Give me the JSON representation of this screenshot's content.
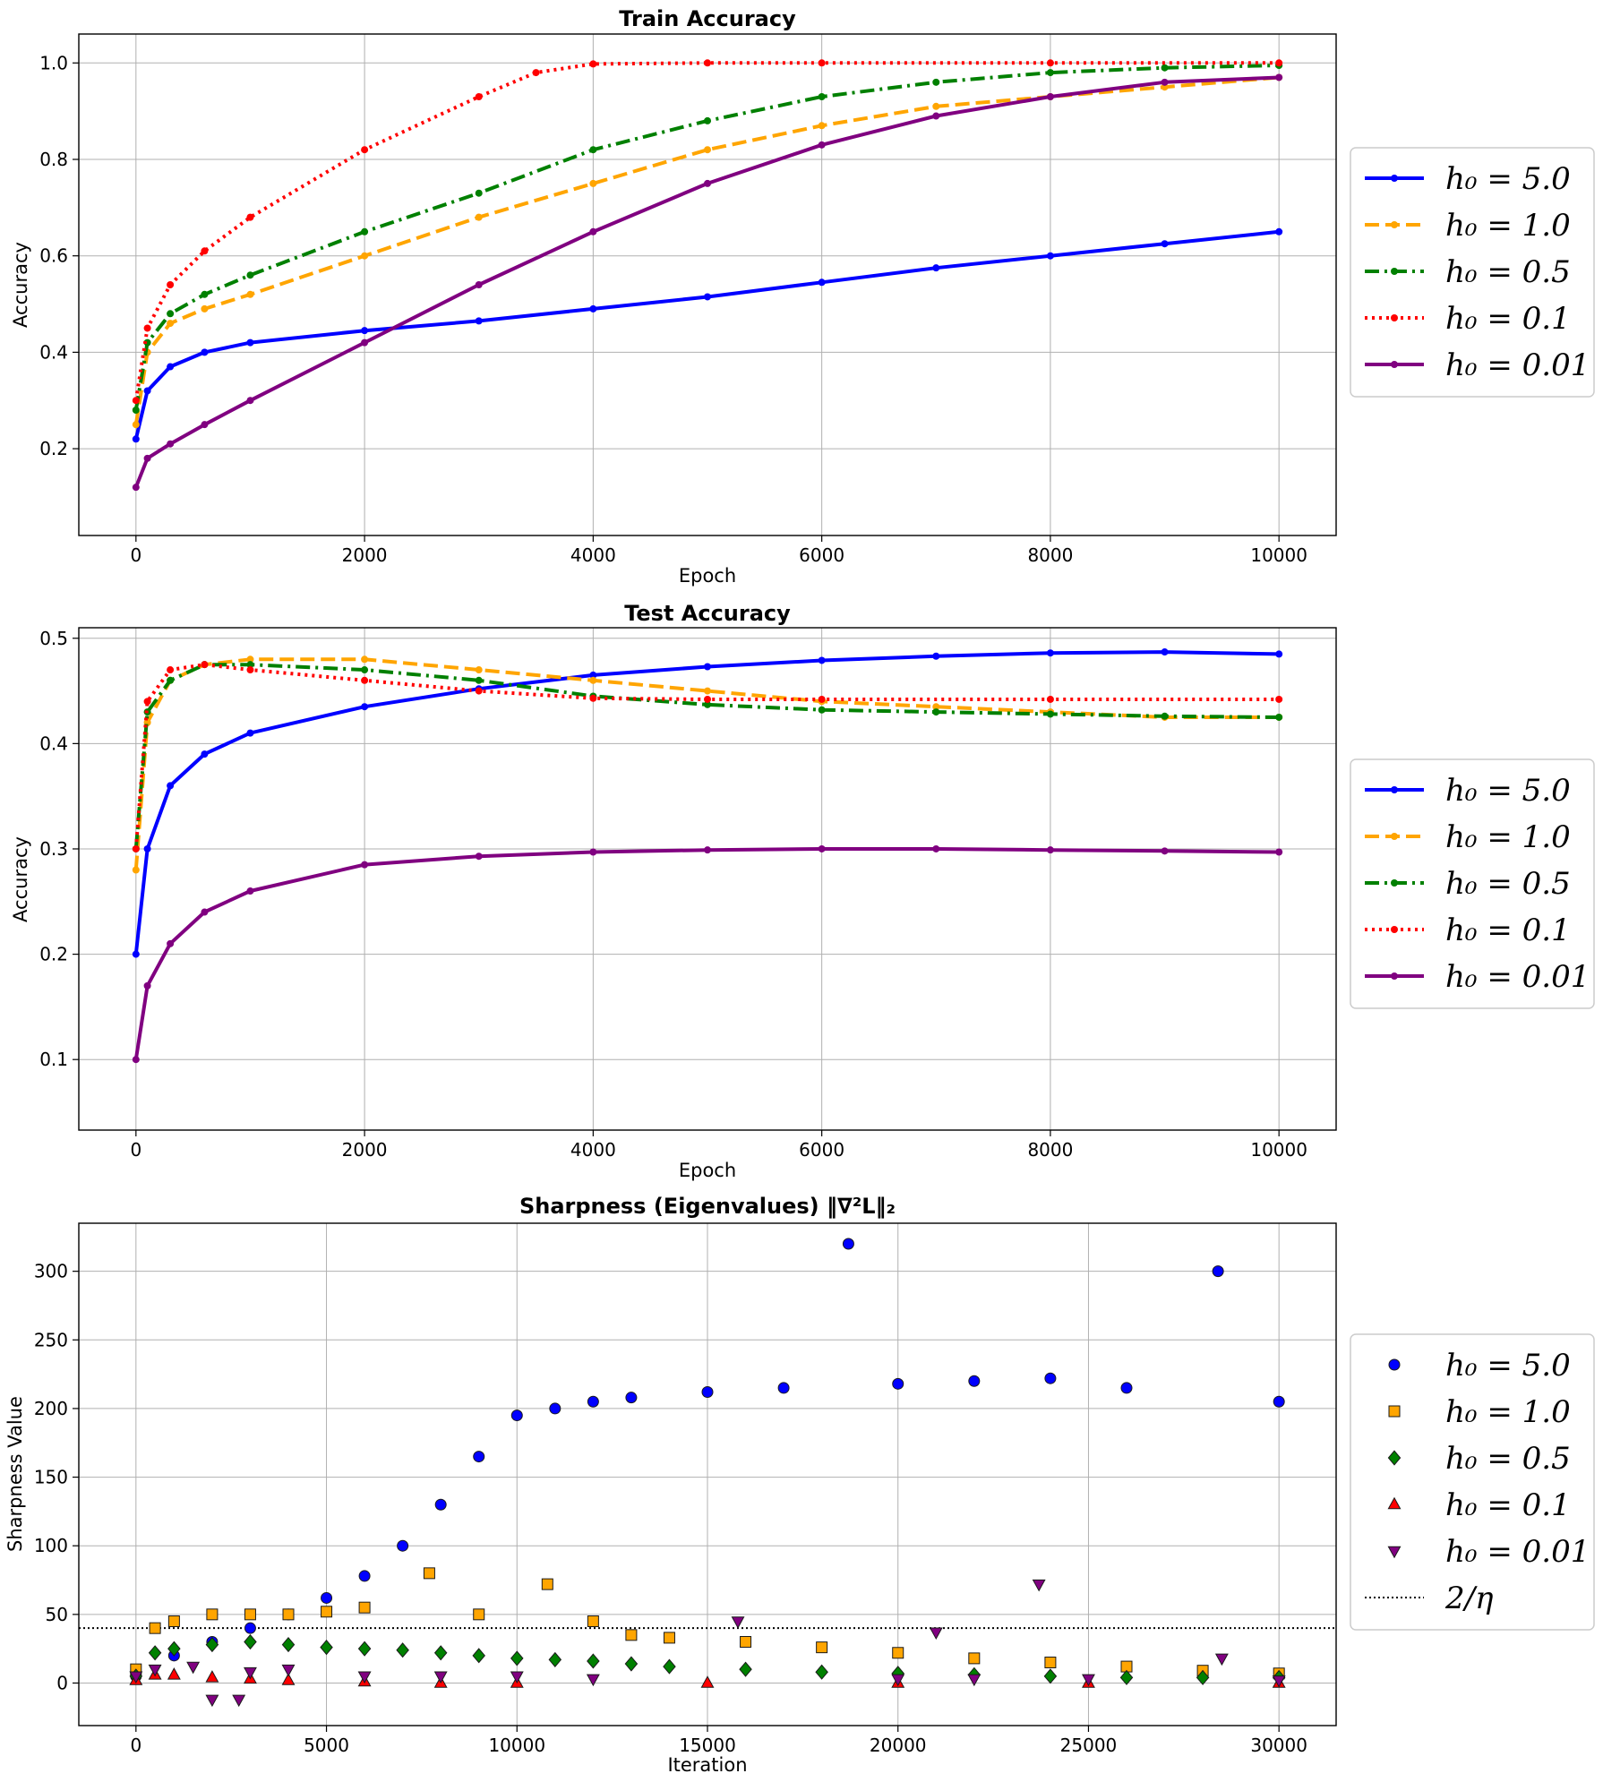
{
  "colors": {
    "h5": "#0000ff",
    "h1": "#ffa500",
    "h05": "#008000",
    "h01": "#ff0000",
    "h001": "#800080",
    "threshold": "#000000"
  },
  "chart_data": [
    {
      "type": "line",
      "title": "Train Accuracy",
      "xlabel": "Epoch",
      "ylabel": "Accuracy",
      "xlim": [
        -500,
        10500
      ],
      "ylim": [
        0.02,
        1.06
      ],
      "xticks": [
        0,
        2000,
        4000,
        6000,
        8000,
        10000
      ],
      "xtick_labels": [
        "0",
        "2000",
        "4000",
        "6000",
        "8000",
        "10000"
      ],
      "yticks": [
        0.2,
        0.4,
        0.6,
        0.8,
        1.0
      ],
      "ytick_labels": [
        "0.2",
        "0.4",
        "0.6",
        "0.8",
        "1.0"
      ],
      "grid": true,
      "legend": "outside-right",
      "series": [
        {
          "name": "h₀ = 5.0",
          "x": [
            0,
            100,
            300,
            600,
            1000,
            2000,
            3000,
            4000,
            5000,
            6000,
            7000,
            8000,
            9000,
            10000
          ],
          "values": [
            0.22,
            0.32,
            0.37,
            0.4,
            0.42,
            0.445,
            0.465,
            0.49,
            0.515,
            0.545,
            0.575,
            0.6,
            0.625,
            0.65
          ]
        },
        {
          "name": "h₀ = 1.0",
          "x": [
            0,
            100,
            300,
            600,
            1000,
            2000,
            3000,
            4000,
            5000,
            6000,
            7000,
            8000,
            9000,
            10000
          ],
          "values": [
            0.25,
            0.4,
            0.46,
            0.49,
            0.52,
            0.6,
            0.68,
            0.75,
            0.82,
            0.87,
            0.91,
            0.93,
            0.95,
            0.97
          ]
        },
        {
          "name": "h₀ = 0.5",
          "x": [
            0,
            100,
            300,
            600,
            1000,
            2000,
            3000,
            4000,
            5000,
            6000,
            7000,
            8000,
            9000,
            10000
          ],
          "values": [
            0.28,
            0.42,
            0.48,
            0.52,
            0.56,
            0.65,
            0.73,
            0.82,
            0.88,
            0.93,
            0.96,
            0.98,
            0.99,
            0.995
          ]
        },
        {
          "name": "h₀ = 0.1",
          "x": [
            0,
            100,
            300,
            600,
            1000,
            2000,
            3000,
            3500,
            4000,
            5000,
            6000,
            8000,
            10000
          ],
          "values": [
            0.3,
            0.45,
            0.54,
            0.61,
            0.68,
            0.82,
            0.93,
            0.98,
            0.998,
            1.0,
            1.0,
            1.0,
            1.0
          ]
        },
        {
          "name": "h₀ = 0.01",
          "x": [
            0,
            100,
            300,
            600,
            1000,
            2000,
            3000,
            4000,
            5000,
            6000,
            7000,
            8000,
            9000,
            10000
          ],
          "values": [
            0.12,
            0.18,
            0.21,
            0.25,
            0.3,
            0.42,
            0.54,
            0.65,
            0.75,
            0.83,
            0.89,
            0.93,
            0.96,
            0.97
          ]
        }
      ]
    },
    {
      "type": "line",
      "title": "Test Accuracy",
      "xlabel": "Epoch",
      "ylabel": "Accuracy",
      "xlim": [
        -500,
        10500
      ],
      "ylim": [
        0.033,
        0.51
      ],
      "xticks": [
        0,
        2000,
        4000,
        6000,
        8000,
        10000
      ],
      "xtick_labels": [
        "0",
        "2000",
        "4000",
        "6000",
        "8000",
        "10000"
      ],
      "yticks": [
        0.1,
        0.2,
        0.3,
        0.4,
        0.5
      ],
      "ytick_labels": [
        "0.1",
        "0.2",
        "0.3",
        "0.4",
        "0.5"
      ],
      "grid": true,
      "legend": "outside-right",
      "series": [
        {
          "name": "h₀ = 5.0",
          "x": [
            0,
            100,
            300,
            600,
            1000,
            2000,
            3000,
            4000,
            5000,
            6000,
            7000,
            8000,
            9000,
            10000
          ],
          "values": [
            0.2,
            0.3,
            0.36,
            0.39,
            0.41,
            0.435,
            0.452,
            0.465,
            0.473,
            0.479,
            0.483,
            0.486,
            0.487,
            0.485
          ]
        },
        {
          "name": "h₀ = 1.0",
          "x": [
            0,
            100,
            300,
            600,
            1000,
            2000,
            3000,
            4000,
            5000,
            6000,
            7000,
            8000,
            9000,
            10000
          ],
          "values": [
            0.28,
            0.42,
            0.46,
            0.475,
            0.48,
            0.48,
            0.47,
            0.46,
            0.45,
            0.44,
            0.435,
            0.43,
            0.425,
            0.425
          ]
        },
        {
          "name": "h₀ = 0.5",
          "x": [
            0,
            100,
            300,
            600,
            1000,
            2000,
            3000,
            4000,
            5000,
            6000,
            7000,
            8000,
            9000,
            10000
          ],
          "values": [
            0.3,
            0.43,
            0.46,
            0.475,
            0.475,
            0.47,
            0.46,
            0.445,
            0.437,
            0.432,
            0.43,
            0.428,
            0.426,
            0.425
          ]
        },
        {
          "name": "h₀ = 0.1",
          "x": [
            0,
            100,
            300,
            600,
            1000,
            2000,
            3000,
            4000,
            5000,
            6000,
            8000,
            10000
          ],
          "values": [
            0.3,
            0.44,
            0.47,
            0.475,
            0.47,
            0.46,
            0.45,
            0.443,
            0.442,
            0.442,
            0.442,
            0.442
          ]
        },
        {
          "name": "h₀ = 0.01",
          "x": [
            0,
            100,
            300,
            600,
            1000,
            2000,
            3000,
            4000,
            5000,
            6000,
            7000,
            8000,
            9000,
            10000
          ],
          "values": [
            0.1,
            0.17,
            0.21,
            0.24,
            0.26,
            0.285,
            0.293,
            0.297,
            0.299,
            0.3,
            0.3,
            0.299,
            0.298,
            0.297
          ]
        }
      ]
    },
    {
      "type": "scatter",
      "title": "Sharpness (Eigenvalues) ‖∇²L‖₂",
      "xlabel": "Iteration",
      "ylabel": "Sharpness Value",
      "xlim": [
        -1500,
        31500
      ],
      "ylim": [
        -31,
        335
      ],
      "xticks": [
        0,
        5000,
        10000,
        15000,
        20000,
        25000,
        30000
      ],
      "xtick_labels": [
        "0",
        "5000",
        "10000",
        "15000",
        "20000",
        "25000",
        "30000"
      ],
      "yticks": [
        0,
        50,
        100,
        150,
        200,
        250,
        300
      ],
      "ytick_labels": [
        "0",
        "50",
        "100",
        "150",
        "200",
        "250",
        "300"
      ],
      "grid": true,
      "legend": "outside-right",
      "reference_line": {
        "name": "2/η",
        "y": 40
      },
      "series": [
        {
          "name": "h₀ = 5.0",
          "marker": "circle",
          "x": [
            0,
            1000,
            2000,
            3000,
            4000,
            5000,
            6000,
            7000,
            8000,
            9000,
            10000,
            11000,
            12000,
            13000,
            15000,
            17000,
            18700,
            20000,
            22000,
            24000,
            26000,
            28400,
            30000
          ],
          "values": [
            5,
            20,
            30,
            40,
            50,
            62,
            78,
            100,
            130,
            165,
            195,
            200,
            205,
            208,
            212,
            215,
            320,
            218,
            220,
            222,
            215,
            300,
            205
          ]
        },
        {
          "name": "h₀ = 1.0",
          "marker": "square",
          "x": [
            0,
            500,
            1000,
            2000,
            3000,
            4000,
            5000,
            6000,
            7700,
            9000,
            10800,
            12000,
            13000,
            14000,
            16000,
            18000,
            20000,
            22000,
            24000,
            26000,
            28000,
            30000
          ],
          "values": [
            10,
            40,
            45,
            50,
            50,
            50,
            52,
            55,
            80,
            50,
            72,
            45,
            35,
            33,
            30,
            26,
            22,
            18,
            15,
            12,
            9,
            7
          ]
        },
        {
          "name": "h₀ = 0.5",
          "marker": "diamond",
          "x": [
            0,
            500,
            1000,
            2000,
            3000,
            4000,
            5000,
            6000,
            7000,
            8000,
            9000,
            10000,
            11000,
            12000,
            13000,
            14000,
            16000,
            18000,
            20000,
            22000,
            24000,
            26000,
            28000,
            30000
          ],
          "values": [
            5,
            22,
            25,
            28,
            30,
            28,
            26,
            25,
            24,
            22,
            20,
            18,
            17,
            16,
            14,
            12,
            10,
            8,
            7,
            6,
            5,
            4,
            4,
            4
          ]
        },
        {
          "name": "h₀ = 0.1",
          "marker": "triangle-up",
          "x": [
            0,
            500,
            1000,
            2000,
            3000,
            4000,
            6000,
            8000,
            10000,
            15000,
            20000,
            25000,
            30000
          ],
          "values": [
            2,
            6,
            6,
            4,
            3,
            2,
            1,
            0,
            0,
            0,
            0,
            0,
            0
          ]
        },
        {
          "name": "h₀ = 0.01",
          "marker": "triangle-down",
          "x": [
            0,
            500,
            1500,
            2000,
            2700,
            3000,
            4000,
            6000,
            8000,
            10000,
            12000,
            15800,
            20000,
            21000,
            22000,
            23700,
            25000,
            28500,
            30000
          ],
          "values": [
            5,
            10,
            12,
            -12,
            -12,
            8,
            10,
            5,
            5,
            5,
            3,
            45,
            3,
            37,
            3,
            72,
            3,
            18,
            2
          ]
        }
      ]
    }
  ]
}
